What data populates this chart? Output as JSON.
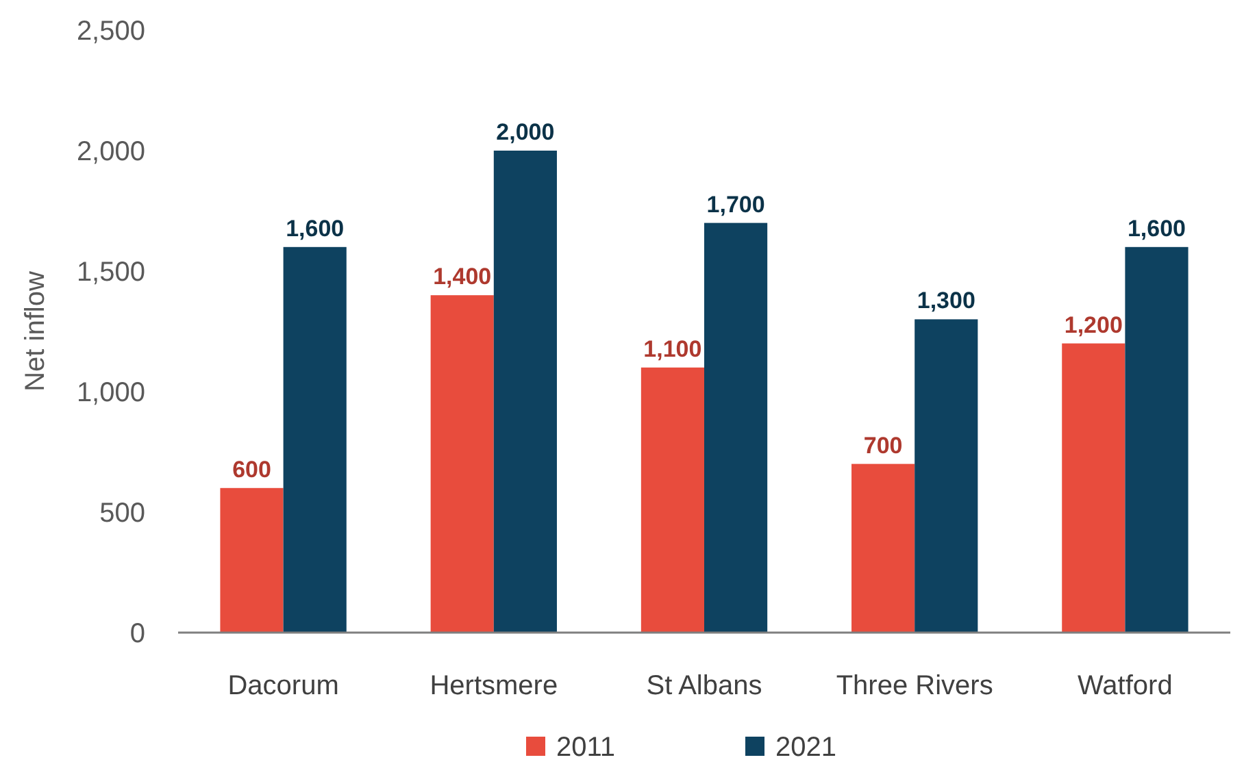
{
  "chart_data": {
    "type": "bar",
    "ylabel": "Net inflow",
    "categories": [
      "Dacorum",
      "Hertsmere",
      "St Albans",
      "Three Rivers",
      "Watford"
    ],
    "series": [
      {
        "name": "2011",
        "color": "#e84c3d",
        "values": [
          600,
          1400,
          1100,
          700,
          1200
        ],
        "value_labels": [
          "600",
          "1,400",
          "1,100",
          "700",
          "1,200"
        ]
      },
      {
        "name": "2021",
        "color": "#0e4260",
        "values": [
          1600,
          2000,
          1700,
          1300,
          1600
        ],
        "value_labels": [
          "1,600",
          "2,000",
          "1,700",
          "1,300",
          "1,600"
        ]
      }
    ],
    "ylim": [
      0,
      2500
    ],
    "yticks": [
      {
        "value": 0,
        "label": "0"
      },
      {
        "value": 500,
        "label": "500"
      },
      {
        "value": 1000,
        "label": "1,000"
      },
      {
        "value": 1500,
        "label": "1,500"
      },
      {
        "value": 2000,
        "label": "2,000"
      },
      {
        "value": 2500,
        "label": "2,500"
      }
    ],
    "legend": "bottom",
    "grid": false
  }
}
